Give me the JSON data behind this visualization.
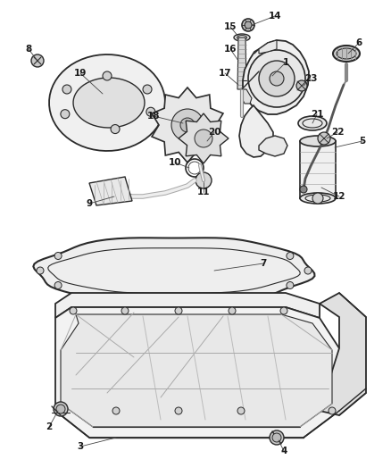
{
  "background_color": "#ffffff",
  "line_color": "#2a2a2a",
  "label_color": "#1a1a1a",
  "figsize": [
    4.38,
    5.33
  ],
  "dpi": 100
}
